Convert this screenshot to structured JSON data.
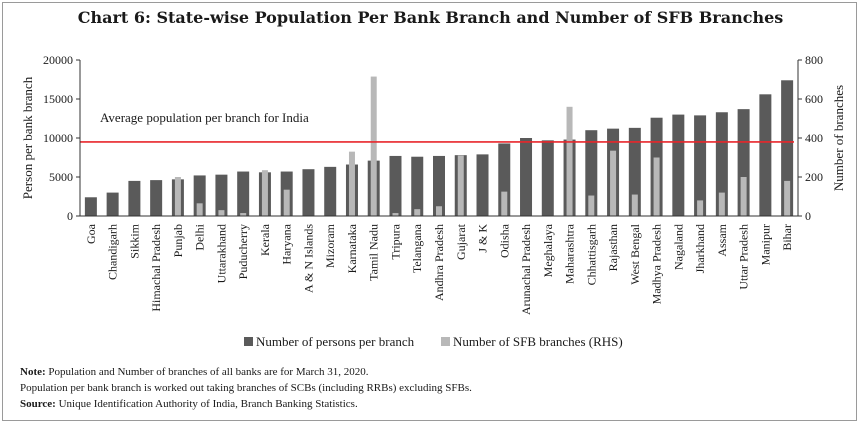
{
  "title": "Chart 6: State-wise Population Per Bank Branch and Number of SFB Branches",
  "notes": {
    "note_label": "Note:",
    "note_text": "Population and Number of branches of all banks are for March 31, 2020.",
    "line2": "Population per bank branch is worked out taking branches of SCBs (including RRBs) excluding SFBs.",
    "source_label": "Source:",
    "source_text": "Unique Identification Authority of India, Branch Banking Statistics."
  },
  "colors": {
    "persons_bar": "#5a5a5a",
    "sfb_bar": "#b8b8b8",
    "average_line": "#e8262b",
    "axis": "#333333"
  },
  "chart_data": {
    "type": "bar",
    "categories": [
      "Goa",
      "Chandigarh",
      "Sikkim",
      "Himachal Pradesh",
      "Punjab",
      "Delhi",
      "Uttarakhand",
      "Puducherry",
      "Kerala",
      "Haryana",
      "A & N Islands",
      "Mizoram",
      "Karnataka",
      "Tamil Nadu",
      "Tripura",
      "Telangana",
      "Andhra Pradesh",
      "Gujarat",
      "J & K",
      "Odisha",
      "Arunachal Pradesh",
      "Meghalaya",
      "Maharashtra",
      "Chhattisgarh",
      "Rajasthan",
      "West Bengal",
      "Madhya Pradesh",
      "Nagaland",
      "Jharkhand",
      "Assam",
      "Uttar Pradesh",
      "Manipur",
      "Bihar"
    ],
    "series": [
      {
        "name": "Number of persons per branch",
        "axis": "left",
        "values": [
          2400,
          3000,
          4500,
          4600,
          4700,
          5200,
          5300,
          5700,
          5600,
          5700,
          6000,
          6300,
          6600,
          7100,
          7700,
          7600,
          7700,
          7800,
          7900,
          9300,
          10000,
          9700,
          9800,
          11000,
          11200,
          11300,
          12600,
          13000,
          12900,
          13300,
          13700,
          15600,
          17400
        ]
      },
      {
        "name": "Number of SFB branches (RHS)",
        "axis": "right",
        "values": [
          0,
          0,
          0,
          0,
          200,
          65,
          30,
          15,
          235,
          135,
          0,
          0,
          330,
          715,
          15,
          35,
          50,
          310,
          0,
          125,
          0,
          0,
          560,
          105,
          335,
          110,
          300,
          0,
          80,
          120,
          200,
          0,
          180
        ]
      }
    ],
    "annotation": "Average population per branch for India",
    "average_value": 9500,
    "ylabel": "Person per bank branch",
    "ylabel_right": "Number of branches",
    "ylim": [
      0,
      20000
    ],
    "ylim_right": [
      0,
      800
    ],
    "yticks": [
      "0",
      "5000",
      "10000",
      "15000",
      "20000"
    ],
    "yticks_right": [
      "0",
      "200",
      "400",
      "600",
      "800"
    ],
    "legend_position": "bottom"
  }
}
